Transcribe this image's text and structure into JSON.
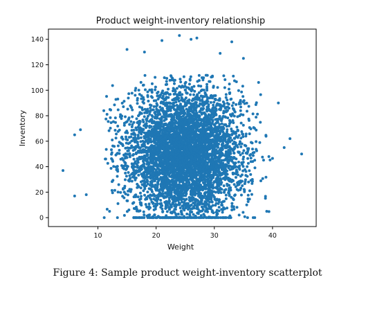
{
  "chart_data": {
    "type": "scatter",
    "title": "Product weight-inventory relationship",
    "xlabel": "Weight",
    "ylabel": "Inventory",
    "xlim": [
      1.5,
      47.5
    ],
    "ylim": [
      -7,
      148
    ],
    "xticks": [
      10,
      20,
      30,
      40
    ],
    "yticks": [
      0,
      20,
      40,
      60,
      80,
      100,
      120,
      140
    ],
    "grid": false,
    "legend": "none",
    "marker_color": "#1f77b4",
    "center": {
      "x": 25,
      "y": 50
    },
    "spread": {
      "x_sd": 5,
      "y_sd": 25
    },
    "point_count": 5000,
    "notes": "Inventory values are clipped at 0 (a dense row of points lies on y=0).",
    "outliers": [
      {
        "x": 4,
        "y": 37
      },
      {
        "x": 6,
        "y": 17
      },
      {
        "x": 6,
        "y": 65
      },
      {
        "x": 7,
        "y": 69
      },
      {
        "x": 8,
        "y": 18
      },
      {
        "x": 45,
        "y": 50
      },
      {
        "x": 43,
        "y": 62
      },
      {
        "x": 41,
        "y": 90
      },
      {
        "x": 42,
        "y": 55
      },
      {
        "x": 24,
        "y": 143
      },
      {
        "x": 27,
        "y": 141
      },
      {
        "x": 26,
        "y": 140
      },
      {
        "x": 15,
        "y": 132
      },
      {
        "x": 18,
        "y": 130
      },
      {
        "x": 33,
        "y": 138
      },
      {
        "x": 21,
        "y": 139
      },
      {
        "x": 12,
        "y": 5
      },
      {
        "x": 39,
        "y": 5
      },
      {
        "x": 35,
        "y": 125
      },
      {
        "x": 31,
        "y": 129
      }
    ]
  },
  "caption": "Figure 4: Sample product weight-inventory scatterplot"
}
